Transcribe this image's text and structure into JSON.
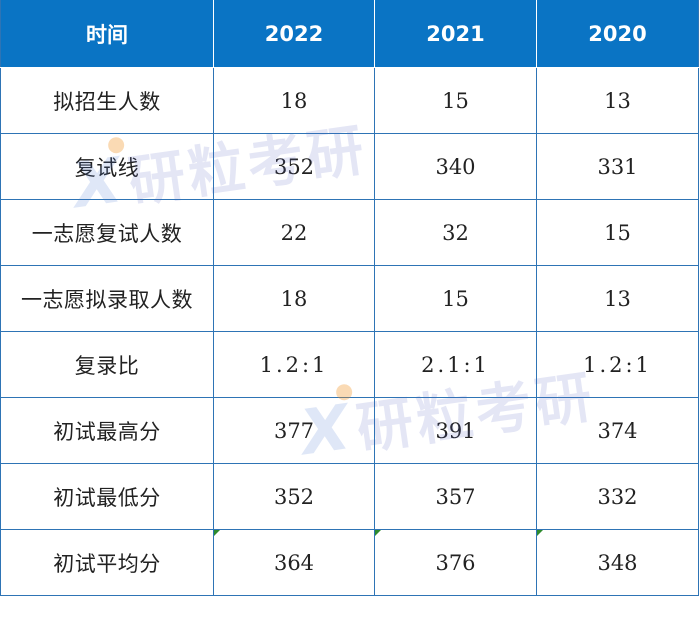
{
  "table": {
    "headers": [
      "时间",
      "2022",
      "2021",
      "2020"
    ],
    "rows": [
      {
        "label": "拟招生人数",
        "values": [
          "18",
          "15",
          "13"
        ]
      },
      {
        "label": "复试线",
        "values": [
          "352",
          "340",
          "331"
        ]
      },
      {
        "label": "一志愿复试人数",
        "values": [
          "22",
          "32",
          "15"
        ]
      },
      {
        "label": "一志愿拟录取人数",
        "values": [
          "18",
          "15",
          "13"
        ]
      },
      {
        "label": "复录比",
        "values": [
          "1.2:1",
          "2.1:1",
          "1.2:1"
        ]
      },
      {
        "label": "初试最高分",
        "values": [
          "377",
          "391",
          "374"
        ]
      },
      {
        "label": "初试最低分",
        "values": [
          "352",
          "357",
          "332"
        ]
      },
      {
        "label": "初试平均分",
        "values": [
          "364",
          "376",
          "348"
        ]
      }
    ]
  },
  "watermark": {
    "text": "研粒考研",
    "logo_icon": "x-logo-icon"
  },
  "colors": {
    "header_bg": "#0a74c4",
    "header_text": "#ffffff",
    "border": "#2e74b5",
    "body_text": "#222222"
  }
}
